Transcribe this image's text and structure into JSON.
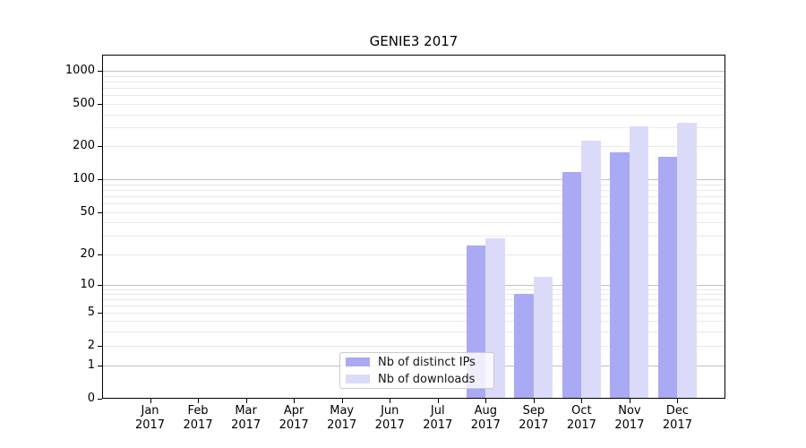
{
  "chart_data": {
    "type": "bar",
    "title": "GENIE3 2017",
    "categories": [
      "Jan 2017",
      "Feb 2017",
      "Mar 2017",
      "Apr 2017",
      "May 2017",
      "Jun 2017",
      "Jul 2017",
      "Aug 2017",
      "Sep 2017",
      "Oct 2017",
      "Nov 2017",
      "Dec 2017"
    ],
    "series": [
      {
        "name": "Nb of distinct IPs",
        "color": "#a9a9f4",
        "values": [
          0,
          0,
          0,
          0,
          0,
          0,
          0,
          24,
          8,
          117,
          176,
          161
        ]
      },
      {
        "name": "Nb of downloads",
        "color": "#dbdbf9",
        "values": [
          0,
          0,
          0,
          0,
          0,
          0,
          0,
          28,
          12,
          226,
          310,
          331
        ]
      }
    ],
    "y_ticks": [
      0,
      1,
      2,
      5,
      10,
      20,
      50,
      100,
      200,
      500,
      1000
    ],
    "y_scale": "symlog",
    "ylim": [
      0,
      1400
    ],
    "xlabel": "",
    "ylabel": "",
    "grid": "horizontal",
    "legend_position": "lower center",
    "colors": {
      "axis": "#000000",
      "grid_major": "#c0c0c0",
      "grid_minor": "#e9e9e9",
      "background": "#ffffff"
    }
  }
}
